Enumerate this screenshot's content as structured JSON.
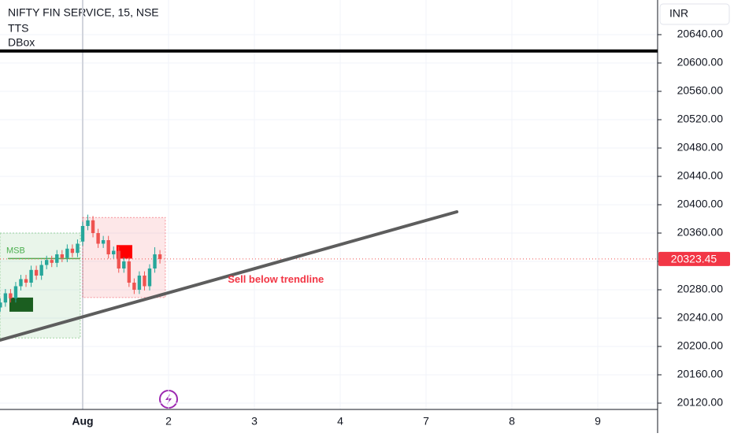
{
  "chart_data": {
    "type": "candlestick",
    "title": "NIFTY FIN SERVICE, 15, NSE",
    "indicators": [
      "TTS",
      "DBox"
    ],
    "currency": "INR",
    "x": [
      -0.96,
      -0.9,
      -0.84,
      -0.78,
      -0.72,
      -0.66,
      -0.6,
      -0.54,
      -0.48,
      -0.42,
      -0.36,
      -0.3,
      -0.24,
      -0.18,
      -0.12,
      -0.06,
      0,
      0.06,
      0.12,
      0.18,
      0.24,
      0.3,
      0.36,
      0.42,
      0.48,
      0.54,
      0.6,
      0.66,
      0.72,
      0.78,
      0.84,
      0.9
    ],
    "open": [
      20255,
      20262,
      20275,
      20268,
      20285,
      20295,
      20290,
      20308,
      20300,
      20315,
      20322,
      20318,
      20330,
      20325,
      20338,
      20332,
      20348,
      20370,
      20378,
      20360,
      20345,
      20350,
      20330,
      20335,
      20310,
      20320,
      20290,
      20280,
      20300,
      20285,
      20310,
      20330
    ],
    "high": [
      20268,
      20281,
      20281,
      20291,
      20301,
      20301,
      20314,
      20314,
      20321,
      20328,
      20328,
      20336,
      20336,
      20344,
      20344,
      20351,
      20376,
      20386,
      20384,
      20366,
      20356,
      20356,
      20341,
      20341,
      20326,
      20326,
      20296,
      20306,
      20306,
      20316,
      20340,
      20336
    ],
    "low": [
      20249,
      20256,
      20262,
      20262,
      20279,
      20284,
      20284,
      20294,
      20294,
      20309,
      20312,
      20312,
      20319,
      20319,
      20326,
      20326,
      20342,
      20364,
      20354,
      20339,
      20339,
      20324,
      20324,
      20304,
      20304,
      20284,
      20274,
      20274,
      20279,
      20279,
      20304,
      20317
    ],
    "close": [
      20262,
      20275,
      20268,
      20285,
      20295,
      20290,
      20308,
      20300,
      20315,
      20322,
      20318,
      20330,
      20325,
      20338,
      20332,
      20345,
      20370,
      20378,
      20360,
      20345,
      20350,
      20330,
      20335,
      20310,
      20320,
      20290,
      20280,
      20300,
      20285,
      20310,
      20330,
      20323.45
    ],
    "up_color": "#26a69a",
    "down_color": "#ef5350",
    "xlim": [
      -0.963,
      6.697
    ],
    "xticks": [
      {
        "value": 0,
        "label": "Aug"
      },
      {
        "value": 1,
        "label": "2"
      },
      {
        "value": 2,
        "label": "3"
      },
      {
        "value": 3,
        "label": "4"
      },
      {
        "value": 4,
        "label": "7"
      },
      {
        "value": 5,
        "label": "8"
      },
      {
        "value": 6,
        "label": "9"
      }
    ],
    "ylim": [
      20111.1,
      20688.9
    ],
    "yticks": [
      {
        "value": 20120,
        "label": "20120.00"
      },
      {
        "value": 20160,
        "label": "20160.00"
      },
      {
        "value": 20200,
        "label": "20200.00"
      },
      {
        "value": 20240,
        "label": "20240.00"
      },
      {
        "value": 20280,
        "label": "20280.00"
      },
      {
        "value": 20320,
        "label": "20320.00"
      },
      {
        "value": 20360,
        "label": "20360.00"
      },
      {
        "value": 20400,
        "label": "20400.00"
      },
      {
        "value": 20440,
        "label": "20440.00"
      },
      {
        "value": 20480,
        "label": "20480.00"
      },
      {
        "value": 20520,
        "label": "20520.00"
      },
      {
        "value": 20560,
        "label": "20560.00"
      },
      {
        "value": 20600,
        "label": "20600.00"
      },
      {
        "value": 20640,
        "label": "20640.00"
      }
    ],
    "grid": true,
    "horizontal_line": {
      "value": 20617,
      "color": "#000000"
    },
    "trendline": {
      "x": [
        -0.963,
        4.358
      ],
      "y": [
        20209,
        20390
      ],
      "color": "#5d5d5d"
    },
    "boxes": [
      {
        "x": [
          -0.963,
          -0.028
        ],
        "y": [
          20212,
          20360
        ],
        "color": "#4caf50"
      },
      {
        "x": [
          0,
          0.963
        ],
        "y": [
          20269,
          20382
        ],
        "color": "#f23645"
      }
    ],
    "blocks": [
      {
        "x": [
          -0.853,
          -0.578
        ],
        "y": [
          20249,
          20269
        ],
        "color": "#1b5e20"
      },
      {
        "x": [
          0.394,
          0.578
        ],
        "y": [
          20324,
          20343
        ],
        "color": "#ff0000"
      }
    ],
    "msb_line": {
      "x": [
        -0.87,
        -0.028
      ],
      "y": 20324,
      "color": "#4caf50"
    },
    "annotations": [
      {
        "text": "MSB",
        "x": -0.78,
        "y": 20335,
        "color": "#4caf50"
      },
      {
        "text": "Sell below trendline",
        "x": 2.25,
        "y": 20294,
        "color": "#f23645"
      }
    ]
  }
}
